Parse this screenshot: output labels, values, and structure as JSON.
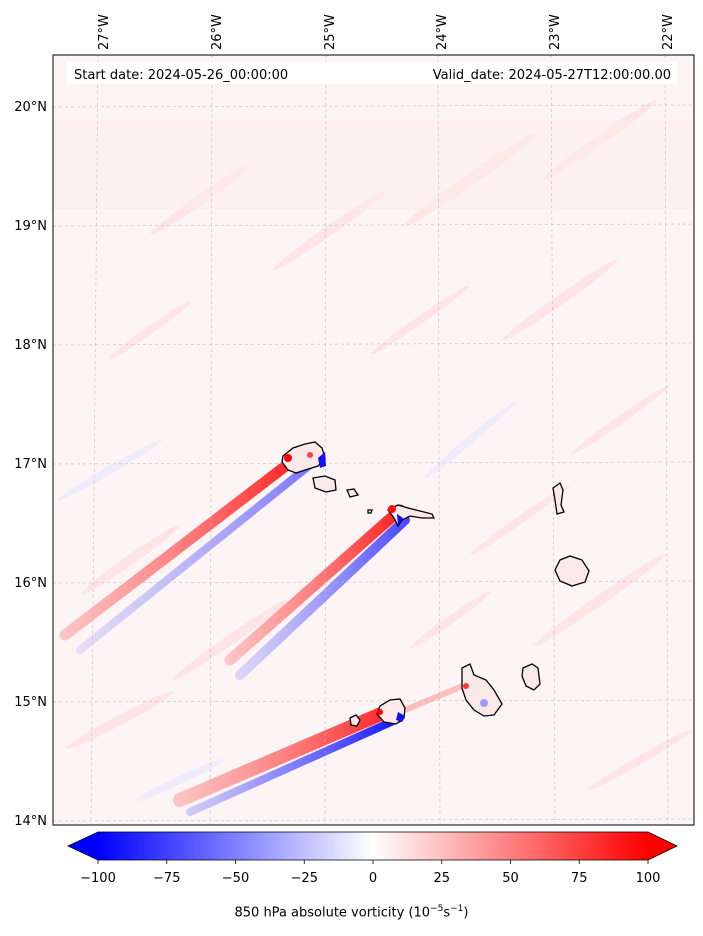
{
  "annotation": {
    "start_date": "Start date: 2024-05-26_00:00:00",
    "valid_date": "Valid_date: 2024-05-27T12:00:00.00"
  },
  "lon_labels": [
    "27°W",
    "26°W",
    "25°W",
    "24°W",
    "23°W",
    "22°W"
  ],
  "lat_labels": [
    "20°N",
    "19°N",
    "18°N",
    "17°N",
    "16°N",
    "15°N",
    "14°N"
  ],
  "map": {
    "lon_range": [
      -27.35,
      -21.85
    ],
    "lat_range": [
      13.95,
      20.4
    ],
    "gridlines": true
  },
  "colorbar": {
    "ticks": [
      "−100",
      "−75",
      "−50",
      "−25",
      "0",
      "25",
      "50",
      "75",
      "100"
    ],
    "range": [
      -100,
      100
    ],
    "colormap": "bwr",
    "extend": "both",
    "label_main": "850 hPa absolute vorticity (10",
    "label_exp1": "−5",
    "label_mid": "s",
    "label_exp2": "−1",
    "label_end": ")"
  },
  "colors": {
    "positive": "#ff0000",
    "negative": "#0000ff",
    "background": "#fdf5f5"
  }
}
